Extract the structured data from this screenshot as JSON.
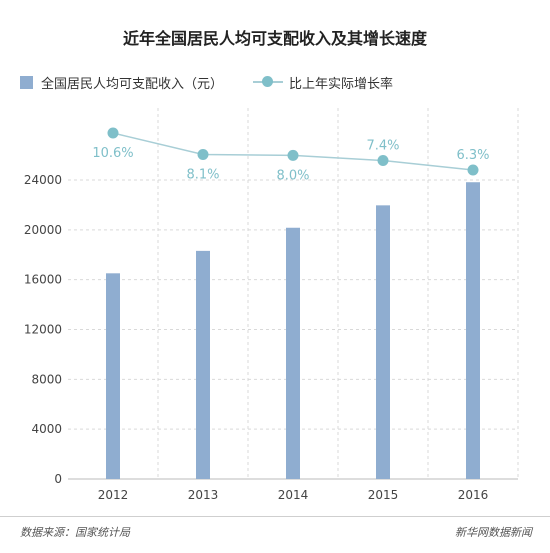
{
  "chart_data": {
    "type": "bar+line",
    "title": "近年全国居民人均可支配收入及其增长速度",
    "categories": [
      "2012",
      "2013",
      "2014",
      "2015",
      "2016"
    ],
    "series": [
      {
        "name": "全国居民人均可支配收入（元）",
        "type": "bar",
        "values": [
          16510,
          18311,
          20167,
          21966,
          23821
        ],
        "color": "#8fadd0"
      },
      {
        "name": "比上年实际增长率",
        "type": "line",
        "values": [
          10.6,
          8.1,
          8.0,
          7.4,
          6.3
        ],
        "labels": [
          "10.6%",
          "8.1%",
          "8.0%",
          "7.4%",
          "6.3%"
        ],
        "color": "#7fbfc9"
      }
    ],
    "yticks": [
      "0",
      "4000",
      "8000",
      "12000",
      "16000",
      "20000",
      "24000"
    ],
    "ylim": [
      0,
      24000
    ],
    "grid": true,
    "legend_position": "top-left"
  },
  "footer": {
    "source": "数据来源：国家统计局",
    "credit": "新华网数据新闻"
  }
}
